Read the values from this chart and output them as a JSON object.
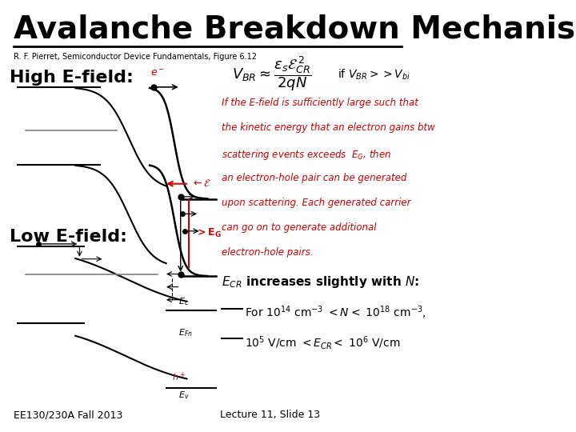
{
  "title": "Avalanche Breakdown Mechanism",
  "subtitle": "R. F. Pierret, Semiconductor Device Fundamentals, Figure 6.12",
  "high_efield_label": "High E-field:",
  "low_efield_label": "Low E-field:",
  "footer_left": "EE130/230A Fall 2013",
  "footer_right": "Lecture 11, Slide 13",
  "bg_color": "#ffffff",
  "title_color": "#000000",
  "red_color": "#cc0000",
  "black_color": "#000000",
  "gray_color": "#888888",
  "title_fontsize": 28,
  "subtitle_fontsize": 7,
  "label_fontsize": 16,
  "body_fontsize": 11,
  "footer_fontsize": 9,
  "annotation_lines": [
    "If the E-field is sufficiently large such that",
    "the kinetic energy that an electron gains btw",
    "scattering events exceeds  $E_G$, then",
    "an electron-hole pair can be generated",
    "upon scattering. Each generated carrier",
    "can go on to generate additional",
    "electron-hole pairs."
  ]
}
